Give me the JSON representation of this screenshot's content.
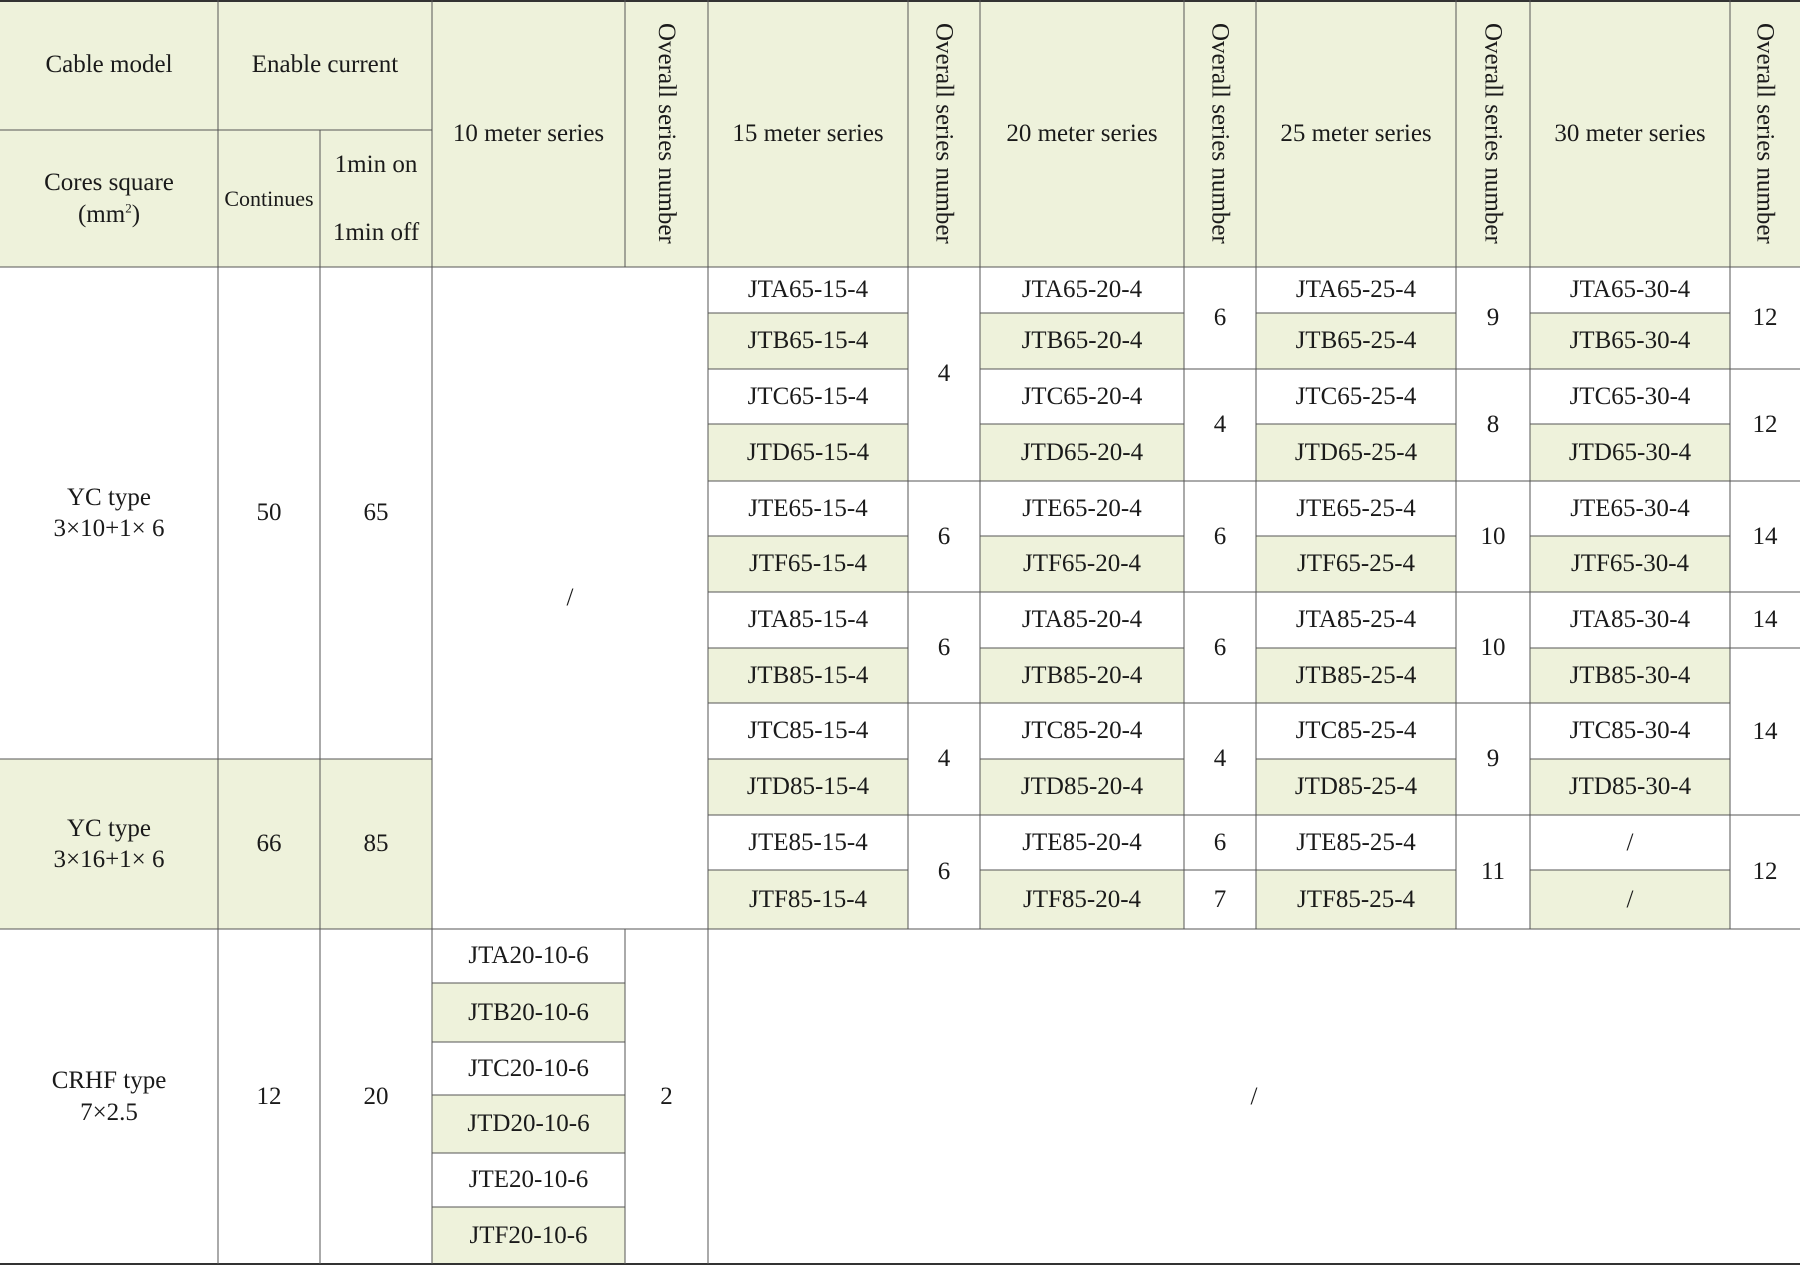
{
  "header": {
    "cable_model": "Cable model",
    "enable_current": "Enable current",
    "cores_square": "Cores square",
    "cores_square_unit": "(mm",
    "cores_square_unit_sup": "2",
    "cores_square_unit_close": ")",
    "continues": "Continues",
    "one_min_on": "1min on",
    "one_min_off": "1min off",
    "series_10": "10 meter series",
    "series_15": "15 meter series",
    "series_20": "20 meter series",
    "series_25": "25 meter series",
    "series_30": "30 meter series",
    "overall_series_number": "Overall series number"
  },
  "groups": [
    {
      "model": "YC type\n3×10+1× 6",
      "continues": "50",
      "on_off": "65"
    },
    {
      "model": "YC type\n3×16+1× 6",
      "continues": "66",
      "on_off": "85"
    },
    {
      "model": "CRHF  type\n7×2.5",
      "continues": "12",
      "on_off": "20"
    }
  ],
  "slash": "/",
  "s15": [
    "JTA65-15-4",
    "JTB65-15-4",
    "JTC65-15-4",
    "JTD65-15-4",
    "JTE65-15-4",
    "JTF65-15-4",
    "JTA85-15-4",
    "JTB85-15-4",
    "JTC85-15-4",
    "JTD85-15-4",
    "JTE85-15-4",
    "JTF85-15-4"
  ],
  "s20": [
    "JTA65-20-4",
    "JTB65-20-4",
    "JTC65-20-4",
    "JTD65-20-4",
    "JTE65-20-4",
    "JTF65-20-4",
    "JTA85-20-4",
    "JTB85-20-4",
    "JTC85-20-4",
    "JTD85-20-4",
    "JTE85-20-4",
    "JTF85-20-4"
  ],
  "s25": [
    "JTA65-25-4",
    "JTB65-25-4",
    "JTC65-25-4",
    "JTD65-25-4",
    "JTE65-25-4",
    "JTF65-25-4",
    "JTA85-25-4",
    "JTB85-25-4",
    "JTC85-25-4",
    "JTD85-25-4",
    "JTE85-25-4",
    "JTF85-25-4"
  ],
  "s30": [
    "JTA65-30-4",
    "JTB65-30-4",
    "JTC65-30-4",
    "JTD65-30-4",
    "JTE65-30-4",
    "JTF65-30-4",
    "JTA85-30-4",
    "JTB85-30-4",
    "JTC85-30-4",
    "JTD85-30-4",
    "/",
    "/"
  ],
  "s10": [
    "JTA20-10-6",
    "JTB20-10-6",
    "JTC20-10-6",
    "JTD20-10-6",
    "JTE20-10-6",
    "JTF20-10-6"
  ],
  "n10": [
    "2"
  ],
  "n15": [
    "4",
    "6",
    "6",
    "4",
    "6"
  ],
  "n20": [
    "6",
    "4",
    "6",
    "6",
    "4",
    "6",
    "7"
  ],
  "n25": [
    "9",
    "8",
    "10",
    "10",
    "9",
    "11"
  ],
  "n30": [
    "12",
    "12",
    "14",
    "14",
    "14",
    "12"
  ]
}
